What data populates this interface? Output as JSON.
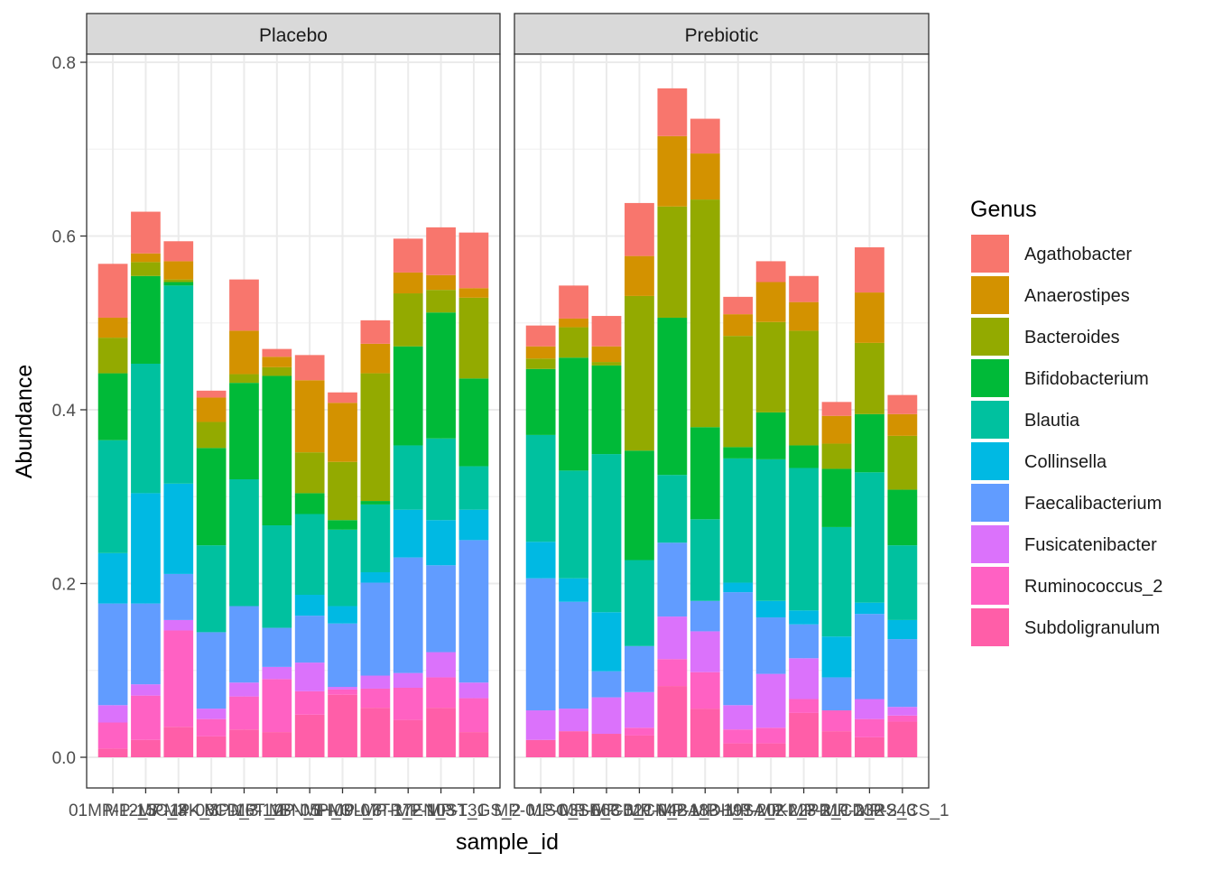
{
  "chart_data": {
    "type": "bar",
    "stacked": true,
    "faceted": true,
    "xlabel": "sample_id",
    "ylabel": "Abundance",
    "ylim": [
      0,
      0.8
    ],
    "yticks": [
      0.0,
      0.2,
      0.4,
      0.6,
      0.8
    ],
    "ytick_labels": [
      "0.0",
      "0.2",
      "0.4",
      "0.6",
      "0.8"
    ],
    "grid": true,
    "legend_title": "Genus",
    "legend_position": "right",
    "xtick_labels_overlapping_text": [
      "01MP-12_3",
      "MP-15C_3",
      "MP-14K_3",
      "MP-08CD_3",
      "MP-16T_2",
      "MP-11BN_1",
      "MP-05H_3",
      "MP-09L_3",
      "MP-07TR_2",
      "MP-17EN_3",
      "MP-10ST_1",
      "MP-13GS_2",
      "MP-01SC_1",
      "MP-03SE_3",
      "MP-06CB_1",
      "MP-02CN_2",
      "MP-04BA_3",
      "MP-18DH_1",
      "MP-19SA_2",
      "MP-20KL_3",
      "MP-22PR_1",
      "MP-21CD_2",
      "MP-23RS_3",
      "MP-24CS_1",
      "40_1001"
    ],
    "genera": [
      "Agathobacter",
      "Anaerostipes",
      "Bacteroides",
      "Bifidobacterium",
      "Blautia",
      "Collinsella",
      "Faecalibacterium",
      "Fusicatenibacter",
      "Ruminococcus_2",
      "Subdoligranulum"
    ],
    "colors": [
      "#F8766D",
      "#D39200",
      "#93AA00",
      "#00BA38",
      "#00C19F",
      "#00B9E3",
      "#619CFF",
      "#DB72FB",
      "#FF61C3",
      "#FF5EA8"
    ],
    "panels": [
      {
        "label": "Placebo",
        "bars": [
          {
            "Subdoligranulum": 0.01,
            "Ruminococcus_2": 0.03,
            "Fusicatenibacter": 0.02,
            "Faecalibacterium": 0.117,
            "Collinsella": 0.058,
            "Blautia": 0.13,
            "Bifidobacterium": 0.077,
            "Bacteroides": 0.041,
            "Anaerostipes": 0.023,
            "Agathobacter": 0.062
          },
          {
            "Subdoligranulum": 0.02,
            "Ruminococcus_2": 0.051,
            "Fusicatenibacter": 0.013,
            "Faecalibacterium": 0.093,
            "Collinsella": 0.127,
            "Blautia": 0.149,
            "Bifidobacterium": 0.101,
            "Bacteroides": 0.016,
            "Anaerostipes": 0.01,
            "Agathobacter": 0.048
          },
          {
            "Subdoligranulum": 0.035,
            "Ruminococcus_2": 0.111,
            "Fusicatenibacter": 0.012,
            "Faecalibacterium": 0.053,
            "Collinsella": 0.104,
            "Blautia": 0.228,
            "Bifidobacterium": 0.004,
            "Bacteroides": 0.003,
            "Anaerostipes": 0.021,
            "Agathobacter": 0.023
          },
          {
            "Subdoligranulum": 0.024,
            "Ruminococcus_2": 0.02,
            "Fusicatenibacter": 0.012,
            "Faecalibacterium": 0.088,
            "Collinsella": 0.0,
            "Blautia": 0.1,
            "Bifidobacterium": 0.112,
            "Bacteroides": 0.03,
            "Anaerostipes": 0.028,
            "Agathobacter": 0.008
          },
          {
            "Subdoligranulum": 0.032,
            "Ruminococcus_2": 0.038,
            "Fusicatenibacter": 0.016,
            "Faecalibacterium": 0.088,
            "Collinsella": 0.0,
            "Blautia": 0.146,
            "Bifidobacterium": 0.111,
            "Bacteroides": 0.01,
            "Anaerostipes": 0.05,
            "Agathobacter": 0.059
          },
          {
            "Subdoligranulum": 0.029,
            "Ruminococcus_2": 0.061,
            "Fusicatenibacter": 0.014,
            "Faecalibacterium": 0.045,
            "Collinsella": 0.0,
            "Blautia": 0.118,
            "Bifidobacterium": 0.172,
            "Bacteroides": 0.01,
            "Anaerostipes": 0.012,
            "Agathobacter": 0.009
          },
          {
            "Subdoligranulum": 0.049,
            "Ruminococcus_2": 0.027,
            "Fusicatenibacter": 0.033,
            "Faecalibacterium": 0.054,
            "Collinsella": 0.024,
            "Blautia": 0.093,
            "Bifidobacterium": 0.024,
            "Bacteroides": 0.047,
            "Anaerostipes": 0.083,
            "Agathobacter": 0.029
          },
          {
            "Subdoligranulum": 0.072,
            "Ruminococcus_2": 0.006,
            "Fusicatenibacter": 0.003,
            "Faecalibacterium": 0.073,
            "Collinsella": 0.02,
            "Blautia": 0.088,
            "Bifidobacterium": 0.011,
            "Bacteroides": 0.067,
            "Anaerostipes": 0.068,
            "Agathobacter": 0.012
          },
          {
            "Subdoligranulum": 0.057,
            "Ruminococcus_2": 0.022,
            "Fusicatenibacter": 0.015,
            "Faecalibacterium": 0.107,
            "Collinsella": 0.012,
            "Blautia": 0.078,
            "Bifidobacterium": 0.004,
            "Bacteroides": 0.147,
            "Anaerostipes": 0.034,
            "Agathobacter": 0.027
          },
          {
            "Subdoligranulum": 0.043,
            "Ruminococcus_2": 0.037,
            "Fusicatenibacter": 0.017,
            "Faecalibacterium": 0.133,
            "Collinsella": 0.055,
            "Blautia": 0.074,
            "Bifidobacterium": 0.114,
            "Bacteroides": 0.061,
            "Anaerostipes": 0.024,
            "Agathobacter": 0.039
          },
          {
            "Subdoligranulum": 0.057,
            "Ruminococcus_2": 0.035,
            "Fusicatenibacter": 0.029,
            "Faecalibacterium": 0.1,
            "Collinsella": 0.052,
            "Blautia": 0.094,
            "Bifidobacterium": 0.145,
            "Bacteroides": 0.026,
            "Anaerostipes": 0.017,
            "Agathobacter": 0.055
          },
          {
            "Subdoligranulum": 0.029,
            "Ruminococcus_2": 0.039,
            "Fusicatenibacter": 0.018,
            "Faecalibacterium": 0.164,
            "Collinsella": 0.035,
            "Blautia": 0.05,
            "Bifidobacterium": 0.101,
            "Bacteroides": 0.093,
            "Anaerostipes": 0.011,
            "Agathobacter": 0.064
          }
        ]
      },
      {
        "label": "Prebiotic",
        "bars": [
          {
            "Subdoligranulum": 0.02,
            "Ruminococcus_2": 0.0,
            "Fusicatenibacter": 0.034,
            "Faecalibacterium": 0.152,
            "Collinsella": 0.042,
            "Blautia": 0.123,
            "Bifidobacterium": 0.076,
            "Bacteroides": 0.012,
            "Anaerostipes": 0.014,
            "Agathobacter": 0.024
          },
          {
            "Subdoligranulum": 0.03,
            "Ruminococcus_2": 0.0,
            "Fusicatenibacter": 0.026,
            "Faecalibacterium": 0.123,
            "Collinsella": 0.027,
            "Blautia": 0.124,
            "Bifidobacterium": 0.13,
            "Bacteroides": 0.035,
            "Anaerostipes": 0.01,
            "Agathobacter": 0.038
          },
          {
            "Subdoligranulum": 0.027,
            "Ruminococcus_2": 0.0,
            "Fusicatenibacter": 0.042,
            "Faecalibacterium": 0.03,
            "Collinsella": 0.068,
            "Blautia": 0.182,
            "Bifidobacterium": 0.102,
            "Bacteroides": 0.004,
            "Anaerostipes": 0.018,
            "Agathobacter": 0.035
          },
          {
            "Subdoligranulum": 0.025,
            "Ruminococcus_2": 0.009,
            "Fusicatenibacter": 0.041,
            "Faecalibacterium": 0.053,
            "Collinsella": 0.0,
            "Blautia": 0.099,
            "Bifidobacterium": 0.126,
            "Bacteroides": 0.178,
            "Anaerostipes": 0.046,
            "Agathobacter": 0.061
          },
          {
            "Subdoligranulum": 0.082,
            "Ruminococcus_2": 0.031,
            "Fusicatenibacter": 0.049,
            "Faecalibacterium": 0.085,
            "Collinsella": 0.0,
            "Blautia": 0.078,
            "Bifidobacterium": 0.181,
            "Bacteroides": 0.128,
            "Anaerostipes": 0.081,
            "Agathobacter": 0.055
          },
          {
            "Subdoligranulum": 0.056,
            "Ruminococcus_2": 0.042,
            "Fusicatenibacter": 0.047,
            "Faecalibacterium": 0.035,
            "Collinsella": 0.0,
            "Blautia": 0.094,
            "Bifidobacterium": 0.106,
            "Bacteroides": 0.262,
            "Anaerostipes": 0.053,
            "Agathobacter": 0.04
          },
          {
            "Subdoligranulum": 0.016,
            "Ruminococcus_2": 0.016,
            "Fusicatenibacter": 0.028,
            "Faecalibacterium": 0.13,
            "Collinsella": 0.011,
            "Blautia": 0.143,
            "Bifidobacterium": 0.013,
            "Bacteroides": 0.128,
            "Anaerostipes": 0.025,
            "Agathobacter": 0.02
          },
          {
            "Subdoligranulum": 0.016,
            "Ruminococcus_2": 0.018,
            "Fusicatenibacter": 0.062,
            "Faecalibacterium": 0.065,
            "Collinsella": 0.019,
            "Blautia": 0.163,
            "Bifidobacterium": 0.054,
            "Bacteroides": 0.104,
            "Anaerostipes": 0.046,
            "Agathobacter": 0.024
          },
          {
            "Subdoligranulum": 0.051,
            "Ruminococcus_2": 0.016,
            "Fusicatenibacter": 0.047,
            "Faecalibacterium": 0.039,
            "Collinsella": 0.016,
            "Blautia": 0.164,
            "Bifidobacterium": 0.026,
            "Bacteroides": 0.132,
            "Anaerostipes": 0.033,
            "Agathobacter": 0.03
          },
          {
            "Subdoligranulum": 0.03,
            "Ruminococcus_2": 0.024,
            "Fusicatenibacter": 0.0,
            "Faecalibacterium": 0.038,
            "Collinsella": 0.047,
            "Blautia": 0.126,
            "Bifidobacterium": 0.067,
            "Bacteroides": 0.029,
            "Anaerostipes": 0.032,
            "Agathobacter": 0.016
          },
          {
            "Subdoligranulum": 0.023,
            "Ruminococcus_2": 0.021,
            "Fusicatenibacter": 0.023,
            "Faecalibacterium": 0.098,
            "Collinsella": 0.013,
            "Blautia": 0.15,
            "Bifidobacterium": 0.067,
            "Bacteroides": 0.082,
            "Anaerostipes": 0.058,
            "Agathobacter": 0.052
          },
          {
            "Subdoligranulum": 0.041,
            "Ruminococcus_2": 0.007,
            "Fusicatenibacter": 0.01,
            "Faecalibacterium": 0.078,
            "Collinsella": 0.022,
            "Blautia": 0.086,
            "Bifidobacterium": 0.064,
            "Bacteroides": 0.062,
            "Anaerostipes": 0.025,
            "Agathobacter": 0.022
          }
        ]
      }
    ]
  }
}
